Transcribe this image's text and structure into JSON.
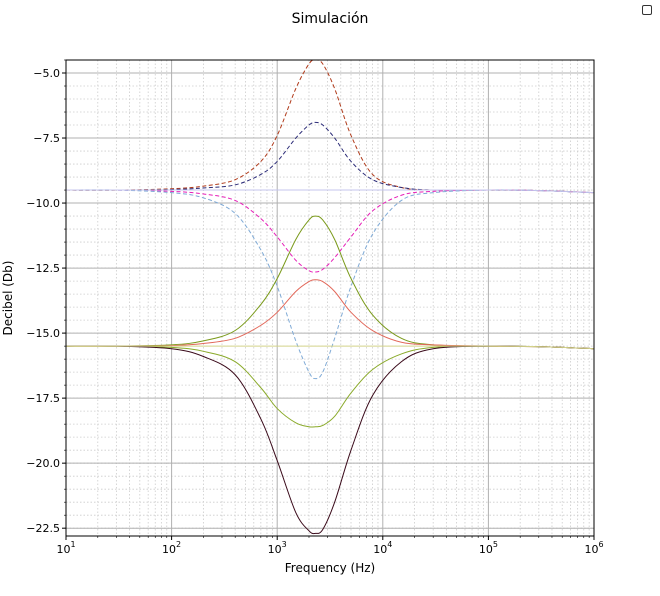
{
  "chart_data": {
    "type": "line",
    "title": "Simulación",
    "xlabel": "Frequency (Hz)",
    "ylabel": "Decibel (Db)",
    "x_scale": "log",
    "xlim": [
      10,
      1000000
    ],
    "ylim": [
      -22.8,
      -4.5
    ],
    "grid": true,
    "x_ticks": [
      {
        "base": "10",
        "exp": "1"
      },
      {
        "base": "10",
        "exp": "2"
      },
      {
        "base": "10",
        "exp": "3"
      },
      {
        "base": "10",
        "exp": "4"
      },
      {
        "base": "10",
        "exp": "5"
      },
      {
        "base": "10",
        "exp": "6"
      }
    ],
    "y_ticks": [
      "−5.0",
      "−7.5",
      "−10.0",
      "−12.5",
      "−15.0",
      "−17.5",
      "−20.0",
      "−22.5"
    ],
    "x": [
      10,
      30,
      100,
      200,
      400,
      700,
      1000,
      1500,
      2000,
      2300,
      2700,
      3500,
      5000,
      8000,
      15000,
      30000,
      100000,
      300000,
      1000000
    ],
    "series": [
      {
        "color": "#b03a1a",
        "dash": true,
        "values": [
          -9.5,
          -9.5,
          -9.45,
          -9.35,
          -9.1,
          -8.4,
          -7.4,
          -5.6,
          -4.65,
          -4.5,
          -4.65,
          -5.6,
          -7.4,
          -8.9,
          -9.4,
          -9.5,
          -9.5,
          -9.52,
          -9.6
        ]
      },
      {
        "color": "#2c2c78",
        "dash": true,
        "values": [
          -9.5,
          -9.5,
          -9.48,
          -9.42,
          -9.3,
          -8.9,
          -8.4,
          -7.5,
          -7.0,
          -6.9,
          -7.0,
          -7.5,
          -8.4,
          -9.1,
          -9.4,
          -9.5,
          -9.5,
          -9.52,
          -9.6
        ]
      },
      {
        "color": "#e61fb8",
        "dash": true,
        "values": [
          -9.5,
          -9.5,
          -9.55,
          -9.65,
          -9.9,
          -10.6,
          -11.3,
          -12.2,
          -12.6,
          -12.65,
          -12.55,
          -12.1,
          -11.3,
          -10.3,
          -9.7,
          -9.55,
          -9.5,
          -9.52,
          -9.6
        ]
      },
      {
        "color": "#7faad6",
        "dash": true,
        "values": [
          -9.5,
          -9.5,
          -9.6,
          -9.8,
          -10.4,
          -11.8,
          -13.2,
          -15.3,
          -16.5,
          -16.75,
          -16.5,
          -15.2,
          -13.2,
          -11.2,
          -9.9,
          -9.6,
          -9.5,
          -9.52,
          -9.6
        ]
      },
      {
        "color": "#c4c4ec",
        "dash": false,
        "values": [
          -9.5,
          -9.5,
          -9.5,
          -9.5,
          -9.5,
          -9.5,
          -9.5,
          -9.5,
          -9.5,
          -9.5,
          -9.5,
          -9.5,
          -9.5,
          -9.5,
          -9.5,
          -9.5,
          -9.5,
          -9.52,
          -9.6
        ]
      },
      {
        "color": "#7a9a1a",
        "dash": false,
        "values": [
          -15.5,
          -15.5,
          -15.45,
          -15.3,
          -14.9,
          -13.9,
          -12.9,
          -11.4,
          -10.65,
          -10.5,
          -10.65,
          -11.4,
          -12.9,
          -14.3,
          -15.2,
          -15.45,
          -15.5,
          -15.52,
          -15.6
        ]
      },
      {
        "color": "#e2685a",
        "dash": false,
        "values": [
          -15.5,
          -15.5,
          -15.48,
          -15.4,
          -15.2,
          -14.7,
          -14.2,
          -13.4,
          -13.02,
          -12.95,
          -13.02,
          -13.4,
          -14.2,
          -14.9,
          -15.35,
          -15.45,
          -15.5,
          -15.52,
          -15.6
        ]
      },
      {
        "color": "#8aaa2a",
        "dash": false,
        "values": [
          -15.5,
          -15.5,
          -15.55,
          -15.7,
          -16.1,
          -17.1,
          -17.9,
          -18.45,
          -18.6,
          -18.6,
          -18.55,
          -18.2,
          -17.3,
          -16.4,
          -15.8,
          -15.55,
          -15.5,
          -15.52,
          -15.6
        ]
      },
      {
        "color": "#3a0a1a",
        "dash": false,
        "values": [
          -15.5,
          -15.5,
          -15.6,
          -15.9,
          -16.6,
          -18.3,
          -19.9,
          -21.9,
          -22.6,
          -22.7,
          -22.55,
          -21.5,
          -19.5,
          -17.4,
          -16.1,
          -15.6,
          -15.5,
          -15.52,
          -15.6
        ]
      },
      {
        "color": "#d4d48a",
        "dash": false,
        "values": [
          -15.5,
          -15.5,
          -15.5,
          -15.5,
          -15.5,
          -15.5,
          -15.5,
          -15.5,
          -15.5,
          -15.5,
          -15.5,
          -15.5,
          -15.5,
          -15.5,
          -15.5,
          -15.5,
          -15.5,
          -15.52,
          -15.6
        ]
      }
    ]
  }
}
